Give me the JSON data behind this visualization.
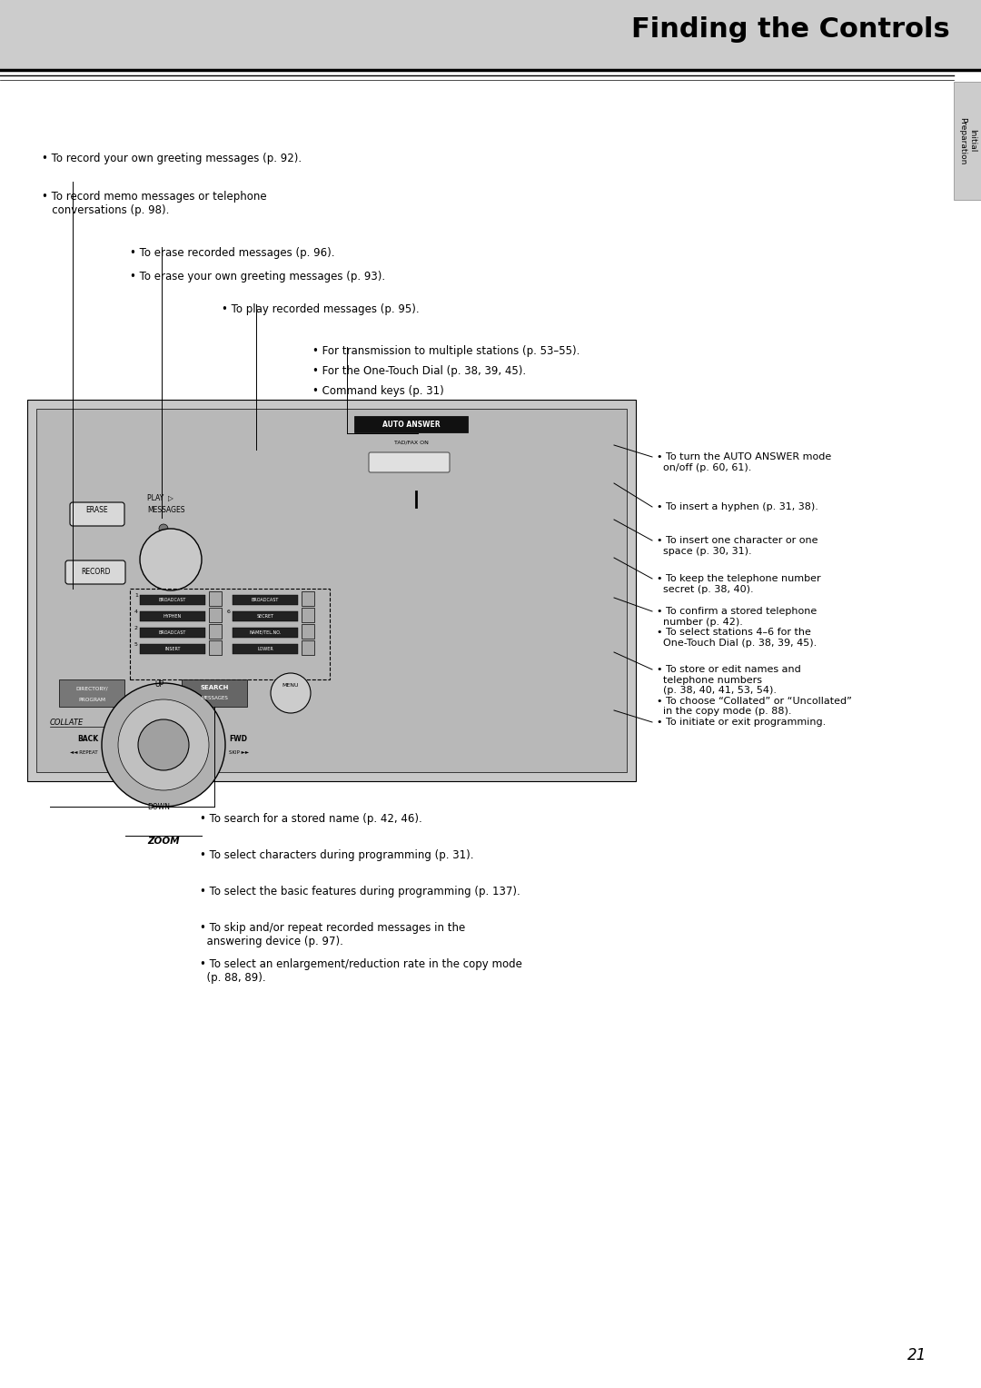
{
  "title": "Finding the Controls",
  "page_number": "21",
  "bg_color": "#ffffff",
  "header_color": "#cccccc",
  "bullet_texts_top_left": [
    "• To record your own greeting messages (p. 92).",
    "• To record memo messages or telephone\n   conversations (p. 98)."
  ],
  "bullet_texts_mid_left": [
    "• To erase recorded messages (p. 96).",
    "• To erase your own greeting messages (p. 93)."
  ],
  "bullet_texts_mid2": [
    "• To play recorded messages (p. 95)."
  ],
  "bullet_texts_mid3": [
    "• For transmission to multiple stations (p. 53–55).",
    "• For the One-Touch Dial (p. 38, 39, 45).",
    "• Command keys (p. 31)"
  ],
  "bullet_texts_right": [
    "• To turn the AUTO ANSWER mode\n  on/off (p. 60, 61).",
    "• To insert a hyphen (p. 31, 38).",
    "• To insert one character or one\n  space (p. 30, 31).",
    "• To keep the telephone number\n  secret (p. 38, 40).",
    "• To confirm a stored telephone\n  number (p. 42).\n• To select stations 4–6 for the\n  One-Touch Dial (p. 38, 39, 45).",
    "• To store or edit names and\n  telephone numbers\n  (p. 38, 40, 41, 53, 54).\n• To choose “Collated” or “Uncollated”\n  in the copy mode (p. 88).",
    "• To initiate or exit programming."
  ],
  "bullet_texts_bottom": [
    "• To search for a stored name (p. 42, 46).",
    "• To select characters during programming (p. 31).",
    "• To select the basic features during programming (p. 137).",
    "• To skip and/or repeat recorded messages in the\n  answering device (p. 97).",
    "• To select an enlargement/reduction rate in the copy mode\n  (p. 88, 89)."
  ]
}
